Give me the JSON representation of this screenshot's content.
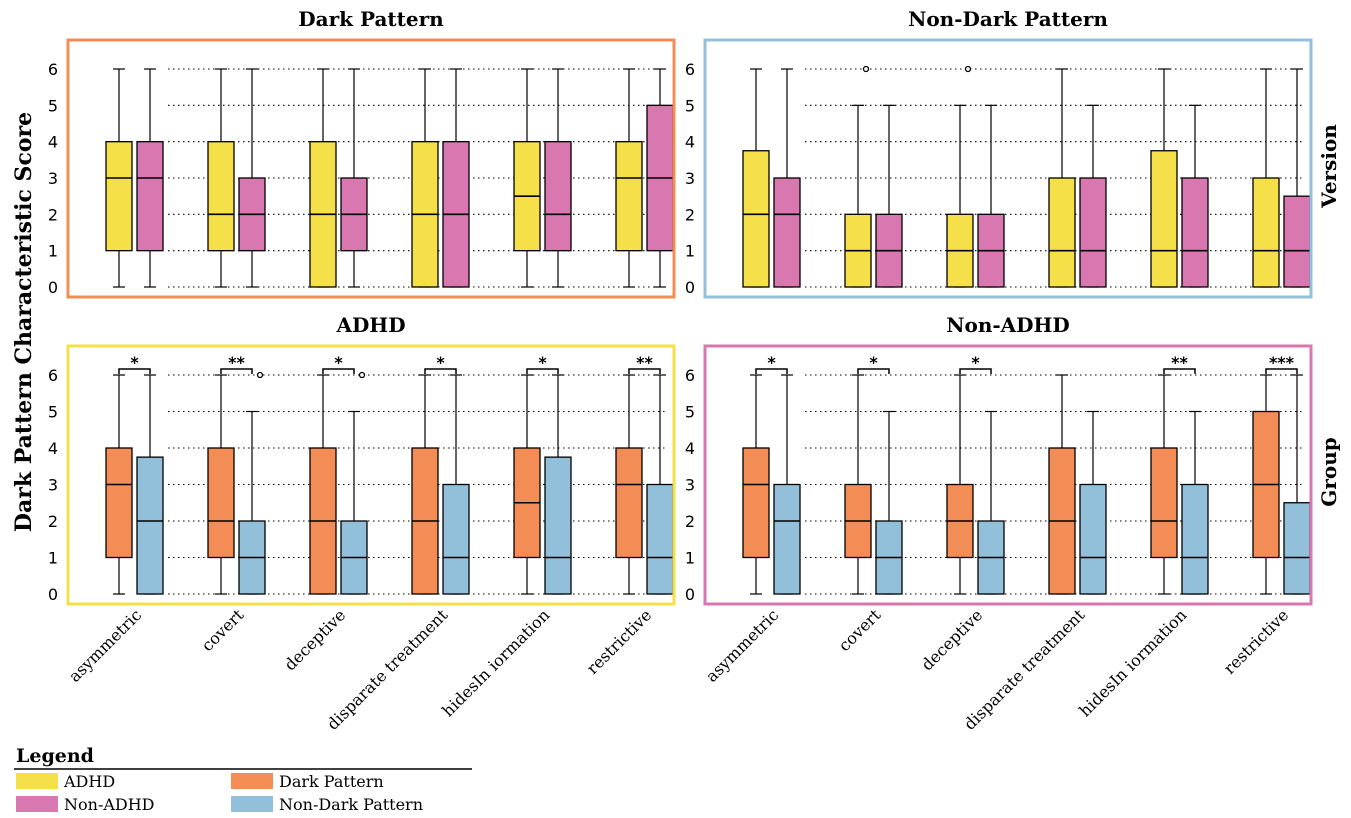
{
  "chart_data": {
    "type": "box",
    "ylabel": "Dark Pattern Characteristic Score",
    "categories": [
      "asymmetric",
      "covert",
      "deceptive",
      "disparate treatment",
      "hidesIn iormation",
      "restrictive"
    ],
    "yticks": [
      "0",
      "1",
      "2",
      "3",
      "4",
      "5",
      "6"
    ],
    "ylim": [
      0,
      6
    ],
    "grid": "dotted horizontal",
    "row_labels": [
      "Version",
      "Group"
    ],
    "colors": {
      "ADHD": "#f5e04a",
      "Non-ADHD": "#d877b0",
      "Dark Pattern": "#f48c55",
      "Non-Dark Pattern": "#92c0da"
    },
    "panels": [
      {
        "title": "Dark Pattern",
        "frame_color": "#f48c55",
        "series": [
          {
            "name": "ADHD",
            "boxes": [
              [
                0,
                1,
                3,
                4,
                6
              ],
              [
                0,
                1,
                2,
                4,
                6
              ],
              [
                0,
                0,
                2,
                4,
                6
              ],
              [
                0,
                0,
                2,
                4,
                6
              ],
              [
                0,
                1,
                2.5,
                4,
                6
              ],
              [
                0,
                1,
                3,
                4,
                6
              ]
            ],
            "outliers": [
              [],
              [],
              [],
              [],
              [],
              []
            ]
          },
          {
            "name": "Non-ADHD",
            "boxes": [
              [
                0,
                1,
                3,
                4,
                6
              ],
              [
                0,
                1,
                2,
                3,
                6
              ],
              [
                0,
                1,
                2,
                3,
                6
              ],
              [
                0,
                0,
                2,
                4,
                6
              ],
              [
                0,
                1,
                2,
                4,
                6
              ],
              [
                0,
                1,
                3,
                5,
                6
              ]
            ],
            "outliers": [
              [],
              [],
              [],
              [],
              [],
              []
            ]
          }
        ],
        "significance": [
          "",
          "",
          "",
          "",
          "",
          ""
        ]
      },
      {
        "title": "Non-Dark Pattern",
        "frame_color": "#92c0da",
        "series": [
          {
            "name": "ADHD",
            "boxes": [
              [
                0,
                0,
                2,
                3.75,
                6
              ],
              [
                0,
                0,
                1,
                2,
                5
              ],
              [
                0,
                0,
                1,
                2,
                5
              ],
              [
                0,
                0,
                1,
                3,
                6
              ],
              [
                0,
                0,
                1,
                3.75,
                6
              ],
              [
                0,
                0,
                1,
                3,
                6
              ]
            ],
            "outliers": [
              [],
              [
                6
              ],
              [
                6
              ],
              [],
              [],
              []
            ]
          },
          {
            "name": "Non-ADHD",
            "boxes": [
              [
                0,
                0,
                2,
                3,
                6
              ],
              [
                0,
                0,
                1,
                2,
                5
              ],
              [
                0,
                0,
                1,
                2,
                5
              ],
              [
                0,
                0,
                1,
                3,
                5
              ],
              [
                0,
                0,
                1,
                3,
                5
              ],
              [
                0,
                0,
                1,
                2.5,
                6
              ]
            ],
            "outliers": [
              [],
              [],
              [],
              [],
              [],
              []
            ]
          }
        ],
        "significance": [
          "",
          "",
          "",
          "",
          "",
          ""
        ]
      },
      {
        "title": "ADHD",
        "frame_color": "#f5e04a",
        "series": [
          {
            "name": "Dark Pattern",
            "boxes": [
              [
                0,
                1,
                3,
                4,
                6
              ],
              [
                0,
                1,
                2,
                4,
                6
              ],
              [
                0,
                0,
                2,
                4,
                6
              ],
              [
                0,
                0,
                2,
                4,
                6
              ],
              [
                0,
                1,
                2.5,
                4,
                6
              ],
              [
                0,
                1,
                3,
                4,
                6
              ]
            ],
            "outliers": [
              [],
              [],
              [],
              [],
              [],
              []
            ]
          },
          {
            "name": "Non-Dark Pattern",
            "boxes": [
              [
                0,
                0,
                2,
                3.75,
                6
              ],
              [
                0,
                0,
                1,
                2,
                5
              ],
              [
                0,
                0,
                1,
                2,
                5
              ],
              [
                0,
                0,
                1,
                3,
                6
              ],
              [
                0,
                0,
                1,
                3.75,
                6
              ],
              [
                0,
                0,
                1,
                3,
                6
              ]
            ],
            "outliers": [
              [],
              [
                6
              ],
              [
                6
              ],
              [],
              [],
              []
            ]
          }
        ],
        "significance": [
          "*",
          "**",
          "*",
          "*",
          "*",
          "**"
        ]
      },
      {
        "title": "Non-ADHD",
        "frame_color": "#d877b0",
        "series": [
          {
            "name": "Dark Pattern",
            "boxes": [
              [
                0,
                1,
                3,
                4,
                6
              ],
              [
                0,
                1,
                2,
                3,
                6
              ],
              [
                0,
                1,
                2,
                3,
                6
              ],
              [
                0,
                0,
                2,
                4,
                6
              ],
              [
                0,
                1,
                2,
                4,
                6
              ],
              [
                0,
                1,
                3,
                5,
                6
              ]
            ],
            "outliers": [
              [],
              [],
              [],
              [],
              [],
              []
            ]
          },
          {
            "name": "Non-Dark Pattern",
            "boxes": [
              [
                0,
                0,
                2,
                3,
                6
              ],
              [
                0,
                0,
                1,
                2,
                5
              ],
              [
                0,
                0,
                1,
                2,
                5
              ],
              [
                0,
                0,
                1,
                3,
                5
              ],
              [
                0,
                0,
                1,
                3,
                5
              ],
              [
                0,
                0,
                1,
                2.5,
                6
              ]
            ],
            "outliers": [
              [],
              [],
              [],
              [],
              [],
              []
            ]
          }
        ],
        "significance": [
          "*",
          "*",
          "*",
          "",
          "**",
          "***"
        ]
      }
    ],
    "legend": {
      "title": "Legend",
      "entries": [
        {
          "label": "ADHD",
          "color": "#f5e04a"
        },
        {
          "label": "Dark Pattern",
          "color": "#f48c55"
        },
        {
          "label": "Non-ADHD",
          "color": "#d877b0"
        },
        {
          "label": "Non-Dark Pattern",
          "color": "#92c0da"
        }
      ]
    }
  }
}
